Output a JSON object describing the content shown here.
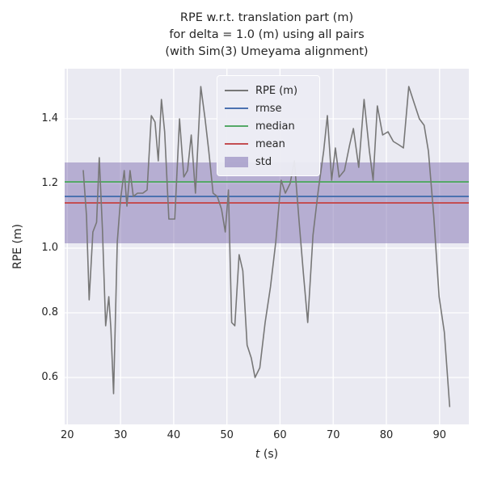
{
  "figure": {
    "title_lines": [
      "RPE w.r.t. translation part (m)",
      "for delta = 1.0 (m) using all pairs",
      "(with Sim(3) Umeyama alignment)"
    ],
    "xlabel_italic": "t",
    "xlabel_rest": " (s)",
    "ylabel": "RPE (m)"
  },
  "legend": {
    "items": [
      {
        "label": "RPE (m)",
        "type": "line",
        "color": "#777777"
      },
      {
        "label": "rmse",
        "type": "line",
        "color": "#4C72B0"
      },
      {
        "label": "median",
        "type": "line",
        "color": "#55A868"
      },
      {
        "label": "mean",
        "type": "line",
        "color": "#C44E52"
      },
      {
        "label": "std",
        "type": "patch",
        "color": "#8172B2"
      }
    ]
  },
  "chart_data": {
    "type": "line",
    "title": "RPE w.r.t. translation part (m) for delta = 1.0 (m) using all pairs (with Sim(3) Umeyama alignment)",
    "xlabel": "t (s)",
    "ylabel": "RPE (m)",
    "xlim": [
      19.5,
      95.5
    ],
    "ylim": [
      0.455,
      1.555
    ],
    "xticks": [
      20,
      30,
      40,
      50,
      60,
      70,
      80,
      90
    ],
    "yticks": [
      0.6,
      0.8,
      1.0,
      1.2,
      1.4
    ],
    "grid": true,
    "grid_color": "#ffffff",
    "axes_background": "#EAEAF2",
    "legend_position": "upper center",
    "series": [
      {
        "name": "RPE (m)",
        "color": "#777777",
        "x": [
          23.0,
          23.6,
          24.1,
          24.8,
          25.5,
          26.0,
          26.6,
          27.2,
          27.8,
          28.2,
          28.7,
          29.4,
          30.0,
          30.7,
          31.2,
          31.8,
          32.4,
          33.2,
          34.2,
          35.0,
          35.8,
          36.5,
          37.1,
          37.7,
          38.3,
          39.1,
          40.2,
          41.1,
          41.9,
          42.6,
          43.3,
          44.1,
          45.1,
          45.9,
          46.6,
          47.4,
          48.2,
          49.0,
          49.7,
          50.3,
          50.9,
          51.5,
          52.3,
          53.0,
          53.8,
          54.6,
          55.3,
          56.2,
          57.2,
          58.2,
          59.2,
          60.2,
          61.0,
          61.9,
          62.7,
          63.6,
          64.4,
          65.2,
          66.2,
          67.2,
          68.2,
          68.9,
          69.7,
          70.4,
          71.1,
          72.1,
          73.1,
          73.8,
          74.8,
          75.8,
          76.8,
          77.5,
          78.3,
          79.3,
          80.3,
          81.3,
          82.3,
          83.2,
          84.2,
          85.2,
          86.2,
          87.1,
          87.9,
          88.9,
          89.9,
          90.9,
          91.9
        ],
        "y": [
          1.24,
          1.1,
          0.84,
          1.05,
          1.08,
          1.28,
          1.06,
          0.76,
          0.85,
          0.75,
          0.55,
          1.02,
          1.15,
          1.24,
          1.13,
          1.24,
          1.16,
          1.17,
          1.17,
          1.18,
          1.41,
          1.39,
          1.27,
          1.46,
          1.36,
          1.09,
          1.09,
          1.4,
          1.22,
          1.24,
          1.35,
          1.17,
          1.5,
          1.4,
          1.3,
          1.17,
          1.16,
          1.12,
          1.05,
          1.18,
          0.77,
          0.76,
          0.98,
          0.93,
          0.7,
          0.66,
          0.6,
          0.63,
          0.77,
          0.88,
          1.02,
          1.21,
          1.17,
          1.2,
          1.27,
          1.08,
          0.92,
          0.77,
          1.04,
          1.18,
          1.3,
          1.41,
          1.21,
          1.31,
          1.22,
          1.24,
          1.32,
          1.37,
          1.25,
          1.46,
          1.3,
          1.21,
          1.44,
          1.35,
          1.36,
          1.33,
          1.32,
          1.31,
          1.5,
          1.45,
          1.4,
          1.38,
          1.3,
          1.1,
          0.85,
          0.74,
          0.51
        ]
      }
    ],
    "stat_lines": [
      {
        "name": "rmse",
        "value": 1.16,
        "color": "#4C72B0"
      },
      {
        "name": "median",
        "value": 1.205,
        "color": "#55A868"
      },
      {
        "name": "mean",
        "value": 1.14,
        "color": "#C44E52"
      }
    ],
    "std_band": {
      "name": "std",
      "center": 1.14,
      "std": 0.125,
      "low": 1.015,
      "high": 1.265,
      "color": "#8172B2",
      "alpha": 0.5
    }
  }
}
